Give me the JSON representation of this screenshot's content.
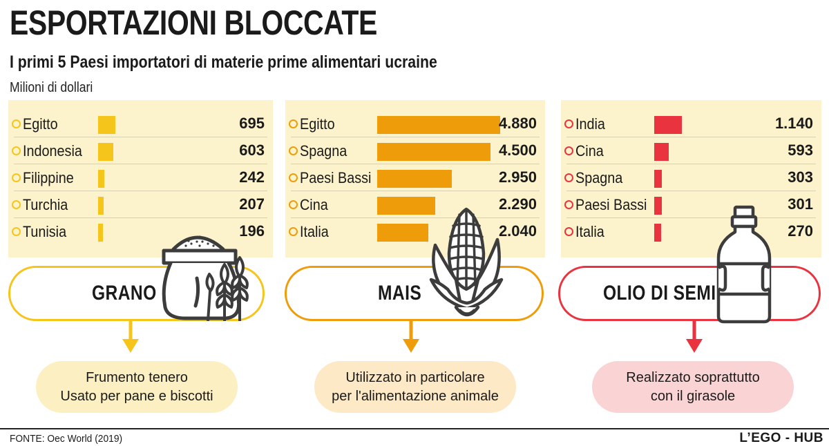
{
  "header": {
    "title": "ESPORTAZIONI BLOCCATE",
    "subtitle": "I primi 5 Paesi importatori di materie prime alimentari ucraine",
    "unit": "Milioni di dollari"
  },
  "colors": {
    "grano": "#f6c51c",
    "mais": "#ee9c0a",
    "olio": "#e9343f",
    "panel_bg": "#fcf3cc",
    "note_grano": "#fcf0c3",
    "note_mais": "#fde9c5",
    "note_olio": "#fad4d5",
    "icon": "#3c3c3c"
  },
  "chart_data": [
    {
      "type": "bar",
      "key": "grano",
      "category_label": "GRANO",
      "categories": [
        "Egitto",
        "Indonesia",
        "Filippine",
        "Turchia",
        "Tunisia"
      ],
      "values": [
        695,
        603,
        242,
        207,
        196
      ],
      "value_labels": [
        "695",
        "603",
        "242",
        "207",
        "196"
      ],
      "note": [
        "Frumento tenero",
        "Usato per pane e biscotti"
      ],
      "icon": "sack-of-flour-and-wheat-icon"
    },
    {
      "type": "bar",
      "key": "mais",
      "category_label": "MAIS",
      "categories": [
        "Egitto",
        "Spagna",
        "Paesi Bassi",
        "Cina",
        "Italia"
      ],
      "values": [
        4880,
        4500,
        2950,
        2290,
        2040
      ],
      "value_labels": [
        "4.880",
        "4.500",
        "2.950",
        "2.290",
        "2.040"
      ],
      "note": [
        "Utilizzato in particolare",
        "per l'alimentazione animale"
      ],
      "icon": "corn-cob-icon"
    },
    {
      "type": "bar",
      "key": "olio",
      "category_label": "OLIO DI SEMI",
      "categories": [
        "India",
        "Cina",
        "Spagna",
        "Paesi Bassi",
        "Italia"
      ],
      "values": [
        1140,
        593,
        303,
        301,
        270
      ],
      "value_labels": [
        "1.140",
        "593",
        "303",
        "301",
        "270"
      ],
      "note": [
        "Realizzato soprattutto",
        "con il girasole"
      ],
      "icon": "oil-bottle-icon"
    }
  ],
  "footer": {
    "source": "FONTE: Oec World (2019)",
    "brand": "L’EGO - HUB"
  }
}
